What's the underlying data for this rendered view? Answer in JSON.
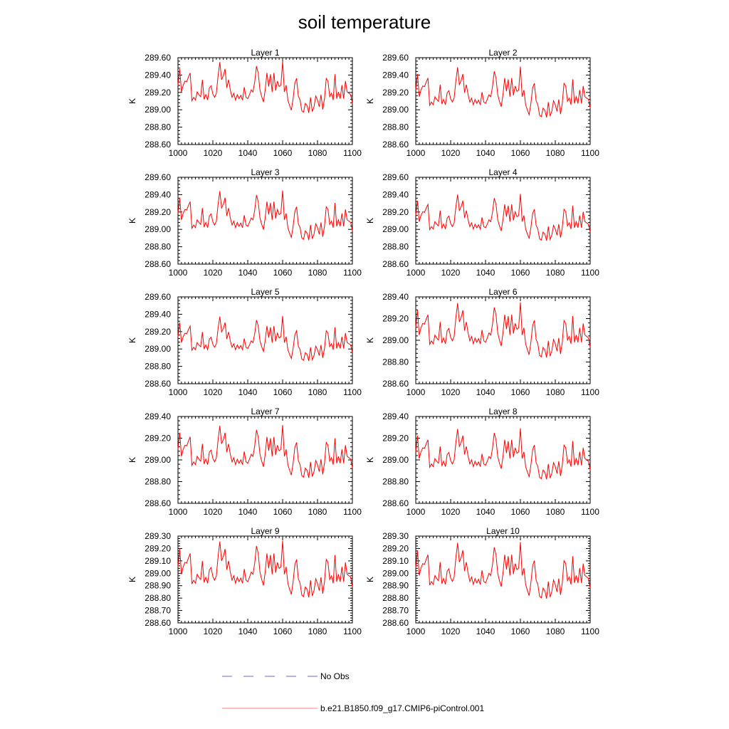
{
  "chart_data": {
    "type": "line",
    "title": "soil temperature",
    "xlim": [
      1000,
      1100
    ],
    "xticks": [
      "1000",
      "1020",
      "1040",
      "1060",
      "1080",
      "1100"
    ],
    "legend": [
      {
        "name": "No Obs",
        "color": "#6a6acd",
        "style": "dashed"
      },
      {
        "name": "b.e21.B1850.f09_g17.CMIP6-piControl.001",
        "color": "#ff0000",
        "style": "solid"
      }
    ],
    "base_pattern": [
      0.62,
      0.86,
      0.52,
      0.62,
      0.68,
      0.67,
      0.74,
      0.8,
      0.39,
      0.44,
      0.4,
      0.52,
      0.48,
      0.45,
      0.7,
      0.41,
      0.48,
      0.4,
      0.58,
      0.61,
      0.49,
      0.44,
      0.5,
      0.76,
      0.96,
      0.7,
      0.76,
      0.86,
      0.58,
      0.7,
      0.55,
      0.44,
      0.5,
      0.4,
      0.48,
      0.42,
      0.47,
      0.4,
      0.59,
      0.44,
      0.42,
      0.48,
      0.55,
      0.52,
      0.67,
      0.9,
      0.8,
      0.55,
      0.45,
      0.37,
      0.55,
      0.8,
      0.6,
      0.78,
      0.52,
      0.8,
      0.54,
      0.68,
      0.6,
      0.62,
      0.97,
      0.52,
      0.62,
      0.4,
      0.32,
      0.25,
      0.42,
      0.65,
      0.72,
      0.46,
      0.4,
      0.24,
      0.22,
      0.35,
      0.32,
      0.21,
      0.44,
      0.23,
      0.3,
      0.46,
      0.4,
      0.3,
      0.48,
      0.26,
      0.42,
      0.72,
      0.68,
      0.45,
      0.5,
      0.4,
      0.78,
      0.42,
      0.52,
      0.42,
      0.62,
      0.42,
      0.68,
      0.52,
      0.5,
      0.48,
      0.35
    ],
    "panels": [
      {
        "title": "Layer 1",
        "ylabel": "K",
        "ylim": [
          288.6,
          289.6
        ],
        "yticks": [
          "288.60",
          "288.80",
          "289.00",
          "289.20",
          "289.40",
          "289.60"
        ],
        "vmin": 288.8,
        "vmax": 289.58
      },
      {
        "title": "Layer 2",
        "ylabel": "K",
        "ylim": [
          288.6,
          289.6
        ],
        "yticks": [
          "288.60",
          "288.80",
          "289.00",
          "289.20",
          "289.40",
          "289.60"
        ],
        "vmin": 288.75,
        "vmax": 289.52
      },
      {
        "title": "Layer 3",
        "ylabel": "K",
        "ylim": [
          288.6,
          289.6
        ],
        "yticks": [
          "288.60",
          "288.80",
          "289.00",
          "289.20",
          "289.40",
          "289.60"
        ],
        "vmin": 288.72,
        "vmax": 289.47
      },
      {
        "title": "Layer 4",
        "ylabel": "K",
        "ylim": [
          288.6,
          289.6
        ],
        "yticks": [
          "288.60",
          "288.80",
          "289.00",
          "289.20",
          "289.40",
          "289.60"
        ],
        "vmin": 288.72,
        "vmax": 289.43
      },
      {
        "title": "Layer 5",
        "ylabel": "K",
        "ylim": [
          288.6,
          289.6
        ],
        "yticks": [
          "288.60",
          "288.80",
          "289.00",
          "289.20",
          "289.40",
          "289.60"
        ],
        "vmin": 288.72,
        "vmax": 289.4
      },
      {
        "title": "Layer 6",
        "ylabel": "K",
        "ylim": [
          288.6,
          289.4
        ],
        "yticks": [
          "288.60",
          "288.80",
          "289.00",
          "289.20",
          "289.40"
        ],
        "vmin": 288.7,
        "vmax": 289.37
      },
      {
        "title": "Layer 7",
        "ylabel": "K",
        "ylim": [
          288.6,
          289.4
        ],
        "yticks": [
          "288.60",
          "288.80",
          "289.00",
          "289.20",
          "289.40"
        ],
        "vmin": 288.7,
        "vmax": 289.34
      },
      {
        "title": "Layer 8",
        "ylabel": "K",
        "ylim": [
          288.6,
          289.4
        ],
        "yticks": [
          "288.60",
          "288.80",
          "289.00",
          "289.20",
          "289.40"
        ],
        "vmin": 288.69,
        "vmax": 289.31
      },
      {
        "title": "Layer 9",
        "ylabel": "K",
        "ylim": [
          288.6,
          289.3
        ],
        "yticks": [
          "288.60",
          "288.70",
          "288.80",
          "288.90",
          "289.00",
          "289.10",
          "289.20",
          "289.30"
        ],
        "vmin": 288.68,
        "vmax": 289.28
      },
      {
        "title": "Layer 10",
        "ylabel": "K",
        "ylim": [
          288.6,
          289.3
        ],
        "yticks": [
          "288.60",
          "288.70",
          "288.80",
          "288.90",
          "289.00",
          "289.10",
          "289.20",
          "289.30"
        ],
        "vmin": 288.67,
        "vmax": 289.27
      }
    ]
  }
}
